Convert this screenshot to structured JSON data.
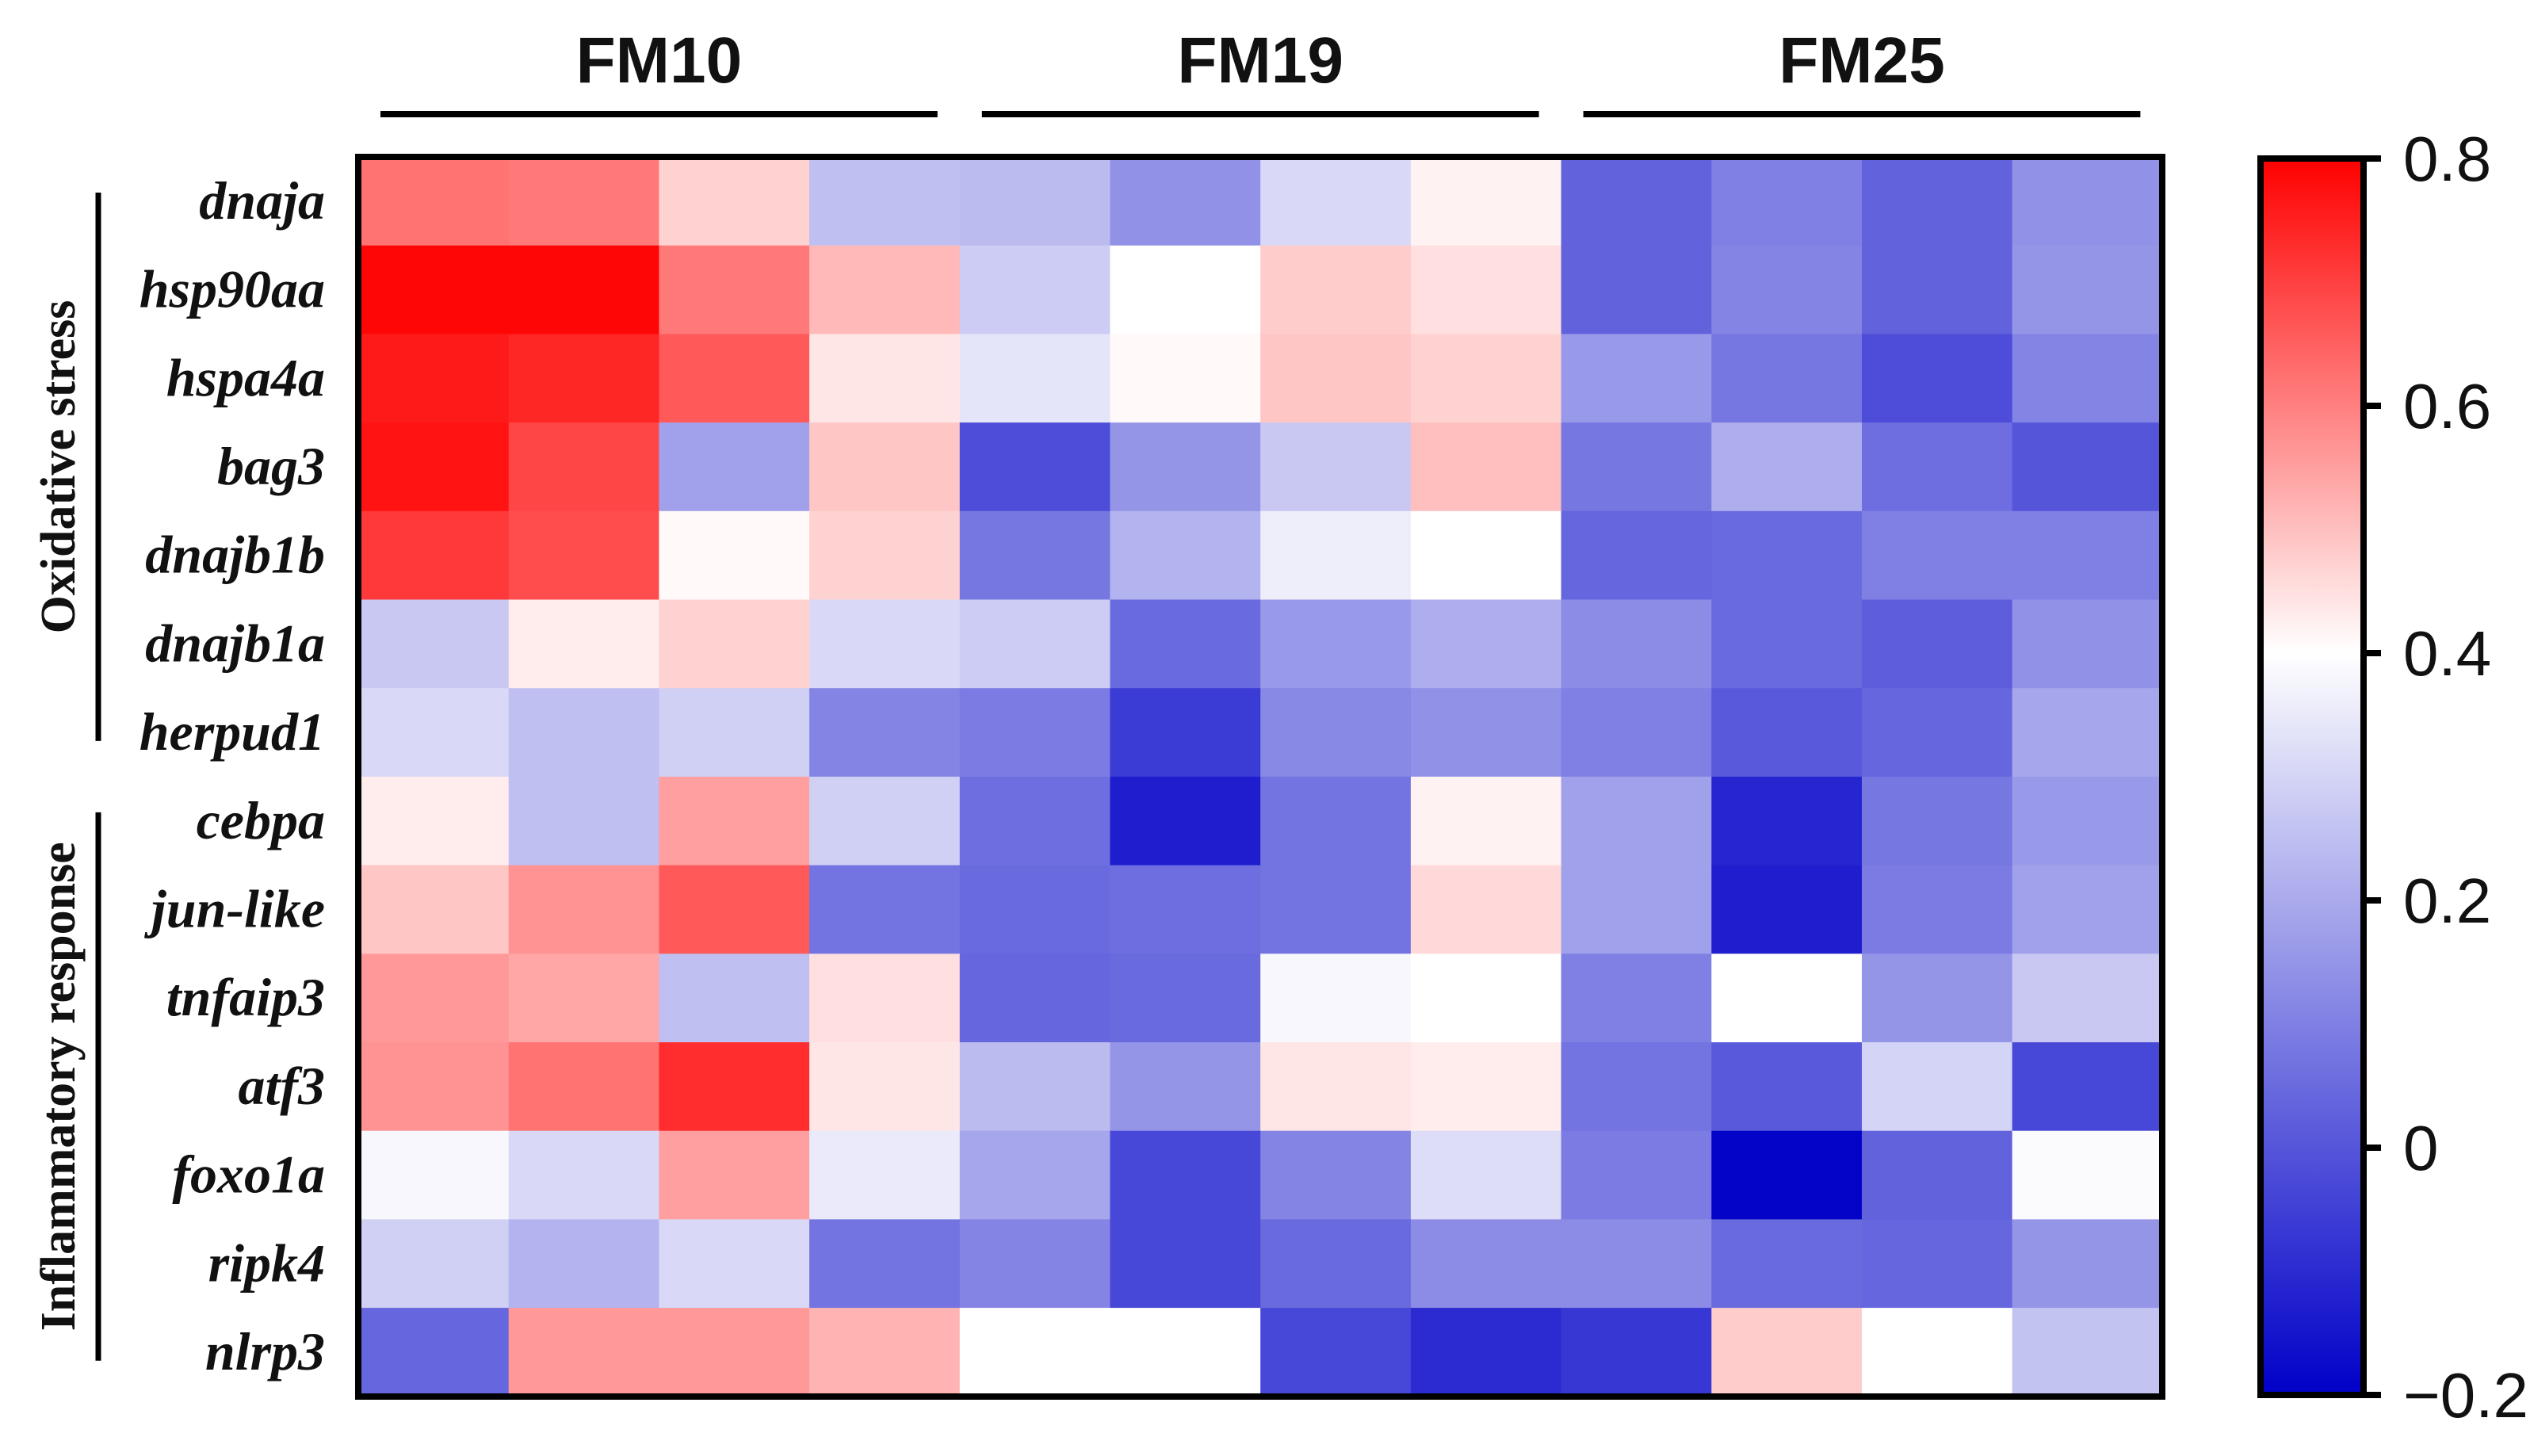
{
  "chart_data": {
    "type": "heatmap",
    "column_groups": [
      {
        "label": "FM10",
        "span": 4
      },
      {
        "label": "FM19",
        "span": 4
      },
      {
        "label": "FM25",
        "span": 4
      }
    ],
    "row_categories": [
      {
        "label": "Oxidative stress",
        "rows": 7
      },
      {
        "label": "Inflammatory response",
        "rows": 7
      }
    ],
    "rows": [
      "dnaja",
      "hsp90aa",
      "hspa4a",
      "bag3",
      "dnajb1b",
      "dnajb1a",
      "herpud1",
      "cebpa",
      "jun-like",
      "tnfaip3",
      "atf3",
      "foxo1a",
      "ripk4",
      "nlrp3"
    ],
    "values": [
      [
        0.62,
        0.61,
        0.47,
        0.25,
        0.24,
        0.14,
        0.31,
        0.42,
        0.03,
        0.1,
        0.03,
        0.14
      ],
      [
        0.79,
        0.79,
        0.61,
        0.51,
        0.28,
        0.4,
        0.48,
        0.45,
        0.03,
        0.11,
        0.03,
        0.15
      ],
      [
        0.76,
        0.74,
        0.66,
        0.44,
        0.34,
        0.41,
        0.49,
        0.47,
        0.16,
        0.08,
        -0.02,
        0.11
      ],
      [
        0.77,
        0.69,
        0.18,
        0.49,
        -0.02,
        0.15,
        0.27,
        0.5,
        0.08,
        0.21,
        0.06,
        0.0
      ],
      [
        0.71,
        0.68,
        0.41,
        0.47,
        0.08,
        0.22,
        0.36,
        0.4,
        0.04,
        0.05,
        0.1,
        0.1
      ],
      [
        0.27,
        0.43,
        0.47,
        0.31,
        0.28,
        0.05,
        0.16,
        0.21,
        0.13,
        0.05,
        0.02,
        0.14
      ],
      [
        0.31,
        0.25,
        0.29,
        0.11,
        0.09,
        -0.06,
        0.12,
        0.14,
        0.1,
        0.01,
        0.04,
        0.19
      ],
      [
        0.43,
        0.25,
        0.55,
        0.29,
        0.06,
        -0.13,
        0.07,
        0.42,
        0.18,
        -0.11,
        0.08,
        0.16
      ],
      [
        0.49,
        0.57,
        0.66,
        0.07,
        0.05,
        0.06,
        0.07,
        0.46,
        0.18,
        -0.13,
        0.09,
        0.18
      ],
      [
        0.56,
        0.54,
        0.25,
        0.45,
        0.04,
        0.05,
        0.38,
        0.4,
        0.1,
        0.4,
        0.15,
        0.27
      ],
      [
        0.57,
        0.62,
        0.73,
        0.44,
        0.24,
        0.15,
        0.44,
        0.43,
        0.07,
        0.01,
        0.3,
        -0.03
      ],
      [
        0.38,
        0.31,
        0.55,
        0.35,
        0.19,
        -0.03,
        0.11,
        0.32,
        0.09,
        -0.19,
        0.03,
        0.39
      ],
      [
        0.29,
        0.22,
        0.31,
        0.07,
        0.11,
        -0.03,
        0.05,
        0.13,
        0.13,
        0.05,
        0.04,
        0.15
      ],
      [
        0.04,
        0.56,
        0.56,
        0.52,
        0.4,
        0.4,
        -0.03,
        -0.1,
        -0.07,
        0.48,
        0.4,
        0.26
      ]
    ],
    "colorbar": {
      "min": -0.2,
      "max": 0.8,
      "ticks": [
        {
          "value": 0.8,
          "label": "0.8"
        },
        {
          "value": 0.6,
          "label": "0.6"
        },
        {
          "value": 0.4,
          "label": "0.4"
        },
        {
          "value": 0.2,
          "label": "0.2"
        },
        {
          "value": 0,
          "label": "0"
        },
        {
          "value": -0.2,
          "label": "−0.2"
        }
      ],
      "low_color": "#0000c8",
      "mid_color": "#ffffff",
      "high_color": "#ff0000",
      "mid_value": 0.4
    }
  }
}
